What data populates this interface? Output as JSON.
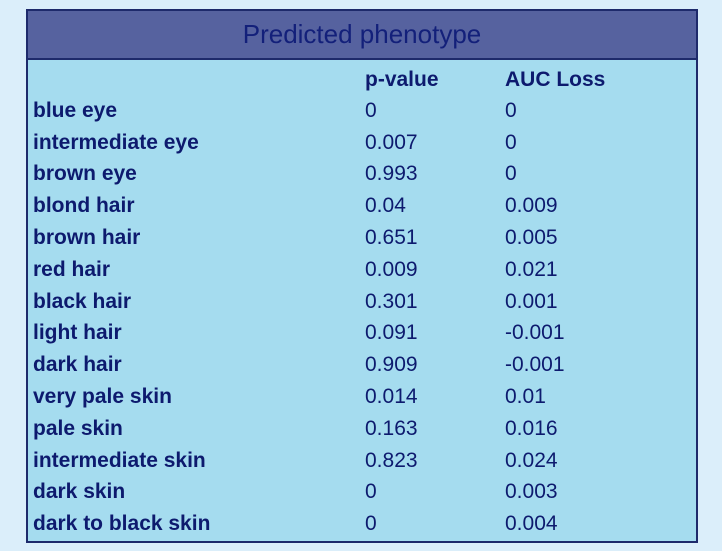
{
  "title": "Predicted phenotype",
  "columns": {
    "pvalue": "p-value",
    "auc": "AUC Loss"
  },
  "rows": [
    {
      "label": "blue eye",
      "pvalue": "0",
      "auc": "0"
    },
    {
      "label": "intermediate eye",
      "pvalue": "0.007",
      "auc": "0"
    },
    {
      "label": "brown eye",
      "pvalue": "0.993",
      "auc": "0"
    },
    {
      "label": "blond hair",
      "pvalue": "0.04",
      "auc": "0.009"
    },
    {
      "label": "brown hair",
      "pvalue": "0.651",
      "auc": "0.005"
    },
    {
      "label": "red hair",
      "pvalue": "0.009",
      "auc": "0.021"
    },
    {
      "label": "black hair",
      "pvalue": "0.301",
      "auc": "0.001"
    },
    {
      "label": "light hair",
      "pvalue": "0.091",
      "auc": "-0.001"
    },
    {
      "label": "dark hair",
      "pvalue": "0.909",
      "auc": "-0.001"
    },
    {
      "label": "very pale skin",
      "pvalue": "0.014",
      "auc": "0.01"
    },
    {
      "label": "pale skin",
      "pvalue": "0.163",
      "auc": "0.016"
    },
    {
      "label": "intermediate skin",
      "pvalue": "0.823",
      "auc": "0.024"
    },
    {
      "label": "dark skin",
      "pvalue": "0",
      "auc": "0.003"
    },
    {
      "label": "dark to black skin",
      "pvalue": "0",
      "auc": "0.004"
    }
  ],
  "colors": {
    "background": "#dbeefa",
    "panel": "#a5dcef",
    "header": "#56629f",
    "text": "#0d1a6e"
  }
}
